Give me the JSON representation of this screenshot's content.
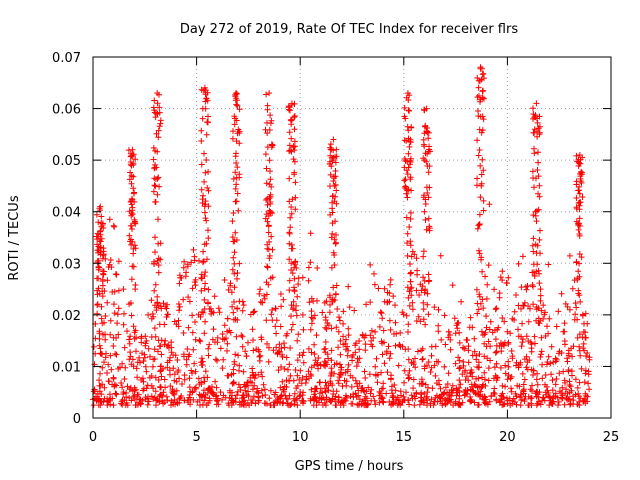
{
  "chart_data": {
    "type": "scatter",
    "title": "Day 272 of 2019, Rate Of TEC Index for receiver flrs",
    "xlabel": "GPS time / hours",
    "ylabel": "ROTI / TECUs",
    "xlim": [
      0,
      25
    ],
    "ylim": [
      0,
      0.07
    ],
    "xticks": [
      "0",
      "5",
      "10",
      "15",
      "20",
      "25"
    ],
    "yticks": [
      "0",
      "0.01",
      "0.02",
      "0.03",
      "0.04",
      "0.05",
      "0.06",
      "0.07"
    ],
    "grid": true,
    "marker": "+",
    "series_color": "#ff0000",
    "notable_peaks": [
      {
        "x": 0.35,
        "y": 0.041
      },
      {
        "x": 1.9,
        "y": 0.052
      },
      {
        "x": 3.1,
        "y": 0.063
      },
      {
        "x": 5.4,
        "y": 0.064
      },
      {
        "x": 6.9,
        "y": 0.063
      },
      {
        "x": 8.5,
        "y": 0.063
      },
      {
        "x": 9.6,
        "y": 0.061
      },
      {
        "x": 11.6,
        "y": 0.054
      },
      {
        "x": 15.2,
        "y": 0.063
      },
      {
        "x": 16.1,
        "y": 0.06
      },
      {
        "x": 18.7,
        "y": 0.068
      },
      {
        "x": 21.4,
        "y": 0.061
      },
      {
        "x": 23.5,
        "y": 0.051
      }
    ],
    "typical_range": [
      0.003,
      0.035
    ],
    "x_data_extent": [
      0,
      24
    ]
  }
}
